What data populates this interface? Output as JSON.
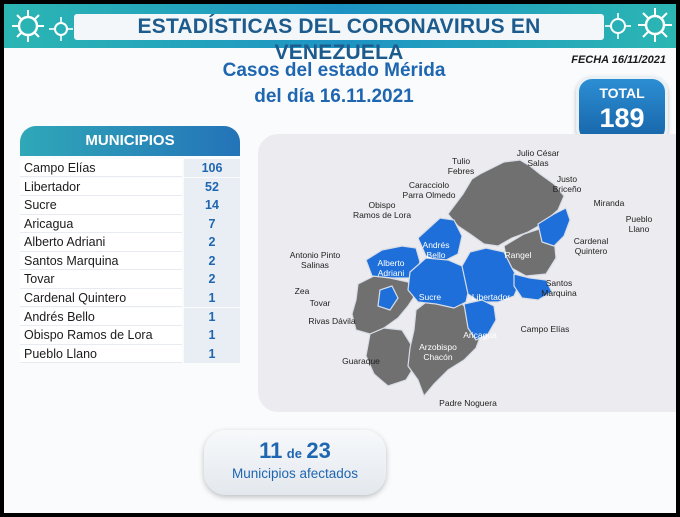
{
  "header": {
    "title": "ESTADÍSTICAS DEL CORONAVIRUS EN VENEZUELA",
    "fecha": "FECHA 16/11/2021"
  },
  "subtitle": {
    "line1": "Casos del estado Mérida",
    "line2": "del día 16.11.2021"
  },
  "total": {
    "label": "TOTAL",
    "value": "189"
  },
  "table": {
    "header": "MUNICIPIOS",
    "rows": [
      {
        "name": "Campo Elías",
        "value": "106"
      },
      {
        "name": "Libertador",
        "value": "52"
      },
      {
        "name": "Sucre",
        "value": "14"
      },
      {
        "name": "Aricagua",
        "value": "7"
      },
      {
        "name": "Alberto Adriani",
        "value": "2"
      },
      {
        "name": "Santos Marquina",
        "value": "2"
      },
      {
        "name": "Tovar",
        "value": "2"
      },
      {
        "name": "Cardenal Quintero",
        "value": "1"
      },
      {
        "name": "Andrés Bello",
        "value": "1"
      },
      {
        "name": "Obispo Ramos de Lora",
        "value": "1"
      },
      {
        "name": "Pueblo Llano",
        "value": "1"
      }
    ]
  },
  "map": {
    "colors": {
      "affected": "#1e6fd9",
      "unaffected": "#707070",
      "panel": "#ececf0"
    },
    "labels": {
      "julio_cesar_salas": "Julio César\nSalas",
      "tulio_febres": "Tulio\nFebres",
      "caracciolo": "Caracciolo\nParra Olmedo",
      "justo_briceno": "Justo\nBriceño",
      "miranda": "Miranda",
      "pueblo_llano": "Pueblo\nLlano",
      "obispo": "Obispo\nRamos de Lora",
      "cardenal_quintero": "Cardenal\nQuintero",
      "antonio_pinto": "Antonio Pinto\nSalinas",
      "rangel": "Rangel",
      "andres_bello": "Andrés\nBello",
      "alberto_adriani": "Alberto\nAdriani",
      "zea": "Zea",
      "tovar": "Tovar",
      "sucre": "Sucre",
      "libertador": "Libertador",
      "santos_marquina": "Santos\nMarquina",
      "rivas_davila": "Rivas Dávila",
      "aricagua": "Aricagua",
      "campo_elias": "Campo Elías",
      "arzobispo_chacon": "Arzobispo\nChacón",
      "guaraque": "Guaraque",
      "padre_noguera": "Padre Noguera"
    }
  },
  "summary": {
    "affected": "11",
    "connector": "de",
    "total": "23",
    "label": "Municipios afectados"
  }
}
